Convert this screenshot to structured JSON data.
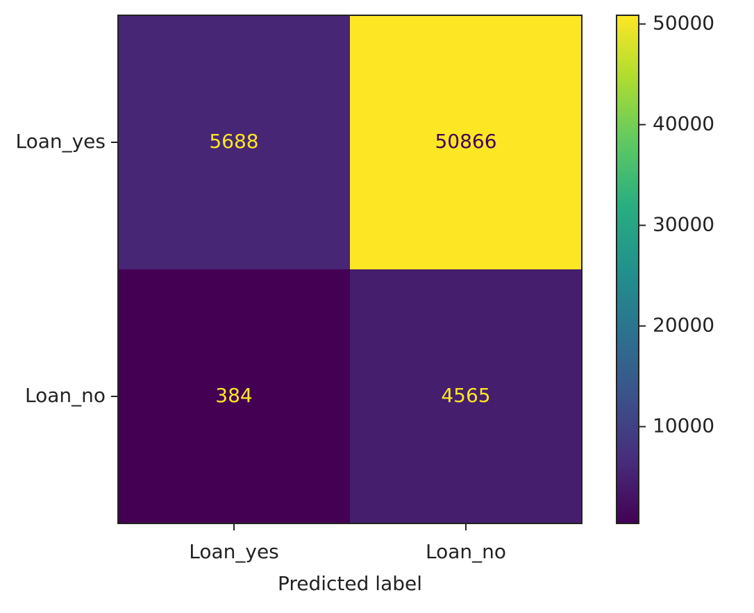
{
  "chart_data": {
    "type": "heatmap",
    "x_categories": [
      "Loan_yes",
      "Loan_no"
    ],
    "y_categories": [
      "Loan_yes",
      "Loan_no"
    ],
    "values": [
      [
        5688,
        50866
      ],
      [
        384,
        4565
      ]
    ],
    "xlabel": "Predicted label",
    "colormap": "viridis",
    "clim": [
      384,
      50866
    ],
    "colorbar_ticks": [
      10000,
      20000,
      30000,
      40000,
      50000
    ]
  }
}
